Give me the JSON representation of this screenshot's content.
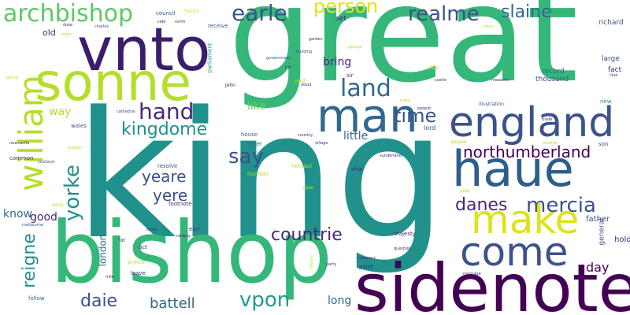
{
  "palette": {
    "dark_purple": "#440154",
    "indigo": "#3b528b",
    "blue": "#31688e",
    "teal": "#21918c",
    "green": "#35b779",
    "lime": "#6ece58",
    "yellow_green": "#b5de2b",
    "yellow": "#dde318"
  },
  "words": [
    {
      "text": "king",
      "color": "#21918c",
      "vertical": false
    },
    {
      "text": "great",
      "color": "#35b779",
      "vertical": false
    },
    {
      "text": "bishop",
      "color": "#35b779",
      "vertical": false
    },
    {
      "text": "sidenote",
      "color": "#440154",
      "vertical": false
    },
    {
      "text": "vnto",
      "color": "#3b1d6e",
      "vertical": false
    },
    {
      "text": "sonne",
      "color": "#b5de2b",
      "vertical": false
    },
    {
      "text": "haue",
      "color": "#2c5f8a",
      "vertical": false
    },
    {
      "text": "man",
      "color": "#31688e",
      "vertical": false
    },
    {
      "text": "england",
      "color": "#3b528b",
      "vertical": false
    },
    {
      "text": "make",
      "color": "#dde318",
      "vertical": false
    },
    {
      "text": "come",
      "color": "#3b528b",
      "vertical": false
    },
    {
      "text": "william",
      "color": "#b5de2b",
      "vertical": true
    },
    {
      "text": "archbishop",
      "color": "#5ec962",
      "vertical": false
    },
    {
      "text": "earle",
      "color": "#3b528b",
      "vertical": false
    },
    {
      "text": "realme",
      "color": "#3b528b",
      "vertical": false
    },
    {
      "text": "person",
      "color": "#dde318",
      "vertical": false
    },
    {
      "text": "slaine",
      "color": "#31688e",
      "vertical": false
    },
    {
      "text": "land",
      "color": "#31688e",
      "vertical": false
    },
    {
      "text": "hand",
      "color": "#482878",
      "vertical": false
    },
    {
      "text": "kingdome",
      "color": "#21918c",
      "vertical": false
    },
    {
      "text": "time",
      "color": "#3b528b",
      "vertical": false
    },
    {
      "text": "say",
      "color": "#3b528b",
      "vertical": false
    },
    {
      "text": "northumberland",
      "color": "#440154",
      "vertical": false
    },
    {
      "text": "yorke",
      "color": "#21918c",
      "vertical": true
    },
    {
      "text": "yeare",
      "color": "#3b528b",
      "vertical": false
    },
    {
      "text": "yere",
      "color": "#3b528b",
      "vertical": false
    },
    {
      "text": "danes",
      "color": "#482878",
      "vertical": false
    },
    {
      "text": "mercia",
      "color": "#3b528b",
      "vertical": false
    },
    {
      "text": "countrie",
      "color": "#482878",
      "vertical": false
    },
    {
      "text": "reigne",
      "color": "#21918c",
      "vertical": true
    },
    {
      "text": "daie",
      "color": "#3b528b",
      "vertical": false
    },
    {
      "text": "battell",
      "color": "#31688e",
      "vertical": false
    },
    {
      "text": "vpon",
      "color": "#1f9e89",
      "vertical": false
    },
    {
      "text": "day",
      "color": "#440154",
      "vertical": false
    },
    {
      "text": "long",
      "color": "#31688e",
      "vertical": false
    },
    {
      "text": "little",
      "color": "#31688e",
      "vertical": false
    },
    {
      "text": "bring",
      "color": "#482878",
      "vertical": false
    },
    {
      "text": "like",
      "color": "#6ece58",
      "vertical": false
    },
    {
      "text": "way",
      "color": "#b5de2b",
      "vertical": false
    },
    {
      "text": "good",
      "color": "#482878",
      "vertical": false
    },
    {
      "text": "know",
      "color": "#31688e",
      "vertical": false
    },
    {
      "text": "london",
      "color": "#31688e",
      "vertical": true
    },
    {
      "text": "old",
      "color": "#482878",
      "vertical": false
    },
    {
      "text": "hold",
      "color": "#482878",
      "vertical": false
    },
    {
      "text": "father",
      "color": "#3b528b",
      "vertical": false
    },
    {
      "text": "general",
      "color": "#3b528b",
      "vertical": true
    },
    {
      "text": "thousand",
      "color": "#3b528b",
      "vertical": false
    },
    {
      "text": "record",
      "color": "#31688e",
      "vertical": false
    },
    {
      "text": "large",
      "color": "#3b528b",
      "vertical": false
    },
    {
      "text": "fact",
      "color": "#482878",
      "vertical": false
    },
    {
      "text": "richard",
      "color": "#3b528b",
      "vertical": false
    },
    {
      "text": "council",
      "color": "#3b528b",
      "vertical": false
    },
    {
      "text": "receive",
      "color": "#3b528b",
      "vertical": false
    },
    {
      "text": "parliament",
      "color": "#21918c",
      "vertical": true
    },
    {
      "text": "set",
      "color": "#482878",
      "vertical": false
    },
    {
      "text": "sir",
      "color": "#482878",
      "vertical": false
    },
    {
      "text": "lord",
      "color": "#3b528b",
      "vertical": false
    },
    {
      "text": "house",
      "color": "#31688e",
      "vertical": false
    },
    {
      "text": "letter",
      "color": "#31688e",
      "vertical": false
    },
    {
      "text": "resolve",
      "color": "#3b528b",
      "vertical": false
    },
    {
      "text": "hotspur",
      "color": "#b5de2b",
      "vertical": false
    },
    {
      "text": "ship",
      "color": "#482878",
      "vertical": false
    },
    {
      "text": "number",
      "color": "#b5de2b",
      "vertical": false
    },
    {
      "text": "footnote",
      "color": "#482878",
      "vertical": false
    },
    {
      "text": "earl",
      "color": "#482878",
      "vertical": false
    },
    {
      "text": "act",
      "color": "#482878",
      "vertical": false
    },
    {
      "text": "far",
      "color": "#3b528b",
      "vertical": false
    },
    {
      "text": "prince",
      "color": "#b5de2b",
      "vertical": false
    },
    {
      "text": "leave",
      "color": "#482878",
      "vertical": false
    },
    {
      "text": "point",
      "color": "#482878",
      "vertical": false
    },
    {
      "text": "majesty",
      "color": "#482878",
      "vertical": false
    },
    {
      "text": "wales",
      "color": "#3b528b",
      "vertical": false
    },
    {
      "text": "common",
      "color": "#482878",
      "vertical": false
    },
    {
      "text": "follow",
      "color": "#31688e",
      "vertical": false
    },
    {
      "text": "army",
      "color": "#b5de2b",
      "vertical": false
    },
    {
      "text": "appear",
      "color": "#b5de2b",
      "vertical": false
    },
    {
      "text": "illustration",
      "color": "#3b528b",
      "vertical": false
    },
    {
      "text": "new",
      "color": "#21918c",
      "vertical": false
    },
    {
      "text": "son",
      "color": "#3b528b",
      "vertical": false
    },
    {
      "text": "end",
      "color": "#b5de2b",
      "vertical": false
    },
    {
      "text": "french",
      "color": "#dde318",
      "vertical": false
    },
    {
      "text": "john",
      "color": "#440154",
      "vertical": false
    },
    {
      "text": "early",
      "color": "#b5de2b",
      "vertical": false
    },
    {
      "text": "case",
      "color": "#b5de2b",
      "vertical": false
    },
    {
      "text": "year",
      "color": "#b5de2b",
      "vertical": false
    },
    {
      "text": "date",
      "color": "#b5de2b",
      "vertical": false
    },
    {
      "text": "question",
      "color": "#482878",
      "vertical": false
    },
    {
      "text": "mary",
      "color": "#b5de2b",
      "vertical": false
    },
    {
      "text": "castle",
      "color": "#482878",
      "vertical": false
    },
    {
      "text": "government",
      "color": "#3b528b",
      "vertical": false
    },
    {
      "text": "george",
      "color": "#b5de2b",
      "vertical": false
    },
    {
      "text": "henry",
      "color": "#b5de2b",
      "vertical": false
    },
    {
      "text": "sunderland",
      "color": "#482878",
      "vertical": false
    },
    {
      "text": "country",
      "color": "#482878",
      "vertical": false
    },
    {
      "text": "village",
      "color": "#482878",
      "vertical": false
    },
    {
      "text": "marriage",
      "color": "#482878",
      "vertical": false
    },
    {
      "text": "measure",
      "color": "#482878",
      "vertical": false
    },
    {
      "text": "people",
      "color": "#482878",
      "vertical": false
    },
    {
      "text": "clue",
      "color": "#482878",
      "vertical": false
    },
    {
      "text": "trade",
      "color": "#482878",
      "vertical": false
    },
    {
      "text": "brother",
      "color": "#b5de2b",
      "vertical": false
    },
    {
      "text": "wood",
      "color": "#482878",
      "vertical": false
    },
    {
      "text": "building",
      "color": "#3b528b",
      "vertical": false
    },
    {
      "text": "garden",
      "color": "#482878",
      "vertical": false
    },
    {
      "text": "company",
      "color": "#482878",
      "vertical": false
    },
    {
      "text": "party",
      "color": "#482878",
      "vertical": false
    },
    {
      "text": "cathedral",
      "color": "#3b528b",
      "vertical": false
    },
    {
      "text": "street",
      "color": "#482878",
      "vertical": false
    },
    {
      "text": "railway",
      "color": "#482878",
      "vertical": false
    },
    {
      "text": "charles",
      "color": "#3b528b",
      "vertical": false
    },
    {
      "text": "duke",
      "color": "#482878",
      "vertical": false
    },
    {
      "text": "reign",
      "color": "#b5de2b",
      "vertical": false
    },
    {
      "text": "north",
      "color": "#482878",
      "vertical": false
    },
    {
      "text": "side",
      "color": "#482878",
      "vertical": false
    },
    {
      "text": "full",
      "color": "#482878",
      "vertical": false
    },
    {
      "text": "mile",
      "color": "#482878",
      "vertical": false
    },
    {
      "text": "english",
      "color": "#b5de2b",
      "vertical": false
    },
    {
      "text": "scotland",
      "color": "#3b528b",
      "vertical": false
    },
    {
      "text": "melbourne",
      "color": "#3b528b",
      "vertical": false
    },
    {
      "text": "newcastle",
      "color": "#482878",
      "vertical": false
    },
    {
      "text": "history",
      "color": "#b5de2b",
      "vertical": false
    }
  ]
}
